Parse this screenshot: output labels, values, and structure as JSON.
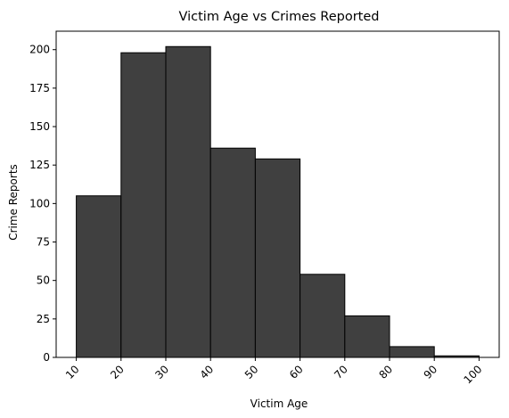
{
  "chart_data": {
    "type": "bar",
    "title": "Victim Age vs Crimes Reported",
    "xlabel": "Victim Age",
    "ylabel": "Crime Reports",
    "bins": [
      {
        "start": 10,
        "end": 20,
        "value": 105
      },
      {
        "start": 20,
        "end": 30,
        "value": 198
      },
      {
        "start": 30,
        "end": 40,
        "value": 202
      },
      {
        "start": 40,
        "end": 50,
        "value": 136
      },
      {
        "start": 50,
        "end": 60,
        "value": 129
      },
      {
        "start": 60,
        "end": 70,
        "value": 54
      },
      {
        "start": 70,
        "end": 80,
        "value": 27
      },
      {
        "start": 80,
        "end": 90,
        "value": 7
      },
      {
        "start": 90,
        "end": 100,
        "value": 1
      }
    ],
    "xticks": [
      10,
      20,
      30,
      40,
      50,
      60,
      70,
      80,
      90,
      100
    ],
    "yticks": [
      0,
      25,
      50,
      75,
      100,
      125,
      150,
      175,
      200
    ],
    "xlim": [
      5.5,
      104.5
    ],
    "ylim": [
      0,
      212
    ],
    "bar_color": "#404040",
    "edge_color": "#000000",
    "grid": false
  }
}
